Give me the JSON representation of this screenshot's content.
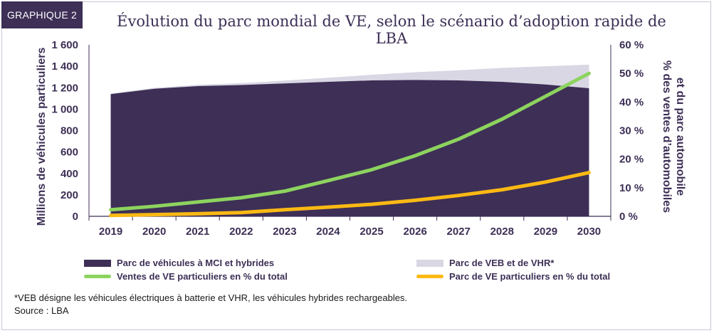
{
  "badge": "GRAPHIQUE 2",
  "title": "Évolution du parc mondial de VE, selon le scénario d’adoption rapide de LBA",
  "chart_data": {
    "type": "area",
    "categories": [
      "2019",
      "2020",
      "2021",
      "2022",
      "2023",
      "2024",
      "2025",
      "2026",
      "2027",
      "2028",
      "2029",
      "2030"
    ],
    "ylabel": "Millions de véhicules particuliers",
    "y2label_line1": "% des ventes d’automobiles",
    "y2label_line2": "et du parc automobile",
    "ylim": [
      0,
      1600
    ],
    "yticks": [
      "0",
      "200",
      "400",
      "600",
      "800",
      "1 000",
      "1 200",
      "1 400",
      "1 600"
    ],
    "y2lim": [
      0,
      60
    ],
    "y2ticks": [
      "0 %",
      "10 %",
      "20 %",
      "30 %",
      "40 %",
      "50 %",
      "60 %"
    ],
    "series": [
      {
        "name": "Parc de véhicules à MCI et hybrides",
        "kind": "area",
        "axis": "left",
        "color": "#3d2f56",
        "values": [
          1140,
          1190,
          1215,
          1225,
          1240,
          1255,
          1268,
          1272,
          1268,
          1255,
          1230,
          1195
        ]
      },
      {
        "name": "Parc de VEB et de VHR*",
        "kind": "area-stacked",
        "axis": "left",
        "color": "#d9d7e4",
        "values": [
          5,
          8,
          12,
          18,
          26,
          38,
          52,
          72,
          95,
          130,
          170,
          220
        ]
      },
      {
        "name": "Ventes de VE particuliers en % du total",
        "kind": "line",
        "axis": "right",
        "color": "#8dd35f",
        "values": [
          2.3,
          3.5,
          5,
          6.5,
          8.8,
          12.5,
          16.3,
          21.2,
          27,
          34,
          42,
          50
        ]
      },
      {
        "name": "Parc de VE particuliers en % du total",
        "kind": "line",
        "axis": "right",
        "color": "#fbb913",
        "values": [
          0.3,
          0.6,
          0.9,
          1.3,
          2.3,
          3.2,
          4.2,
          5.6,
          7.3,
          9.3,
          12,
          15.3
        ]
      }
    ],
    "legend_position": "bottom"
  },
  "notes": {
    "footnote": "*VEB désigne les véhicules électriques à batterie et VHR, les véhicules hybrides rechargeables.",
    "source": "Source : LBA"
  }
}
